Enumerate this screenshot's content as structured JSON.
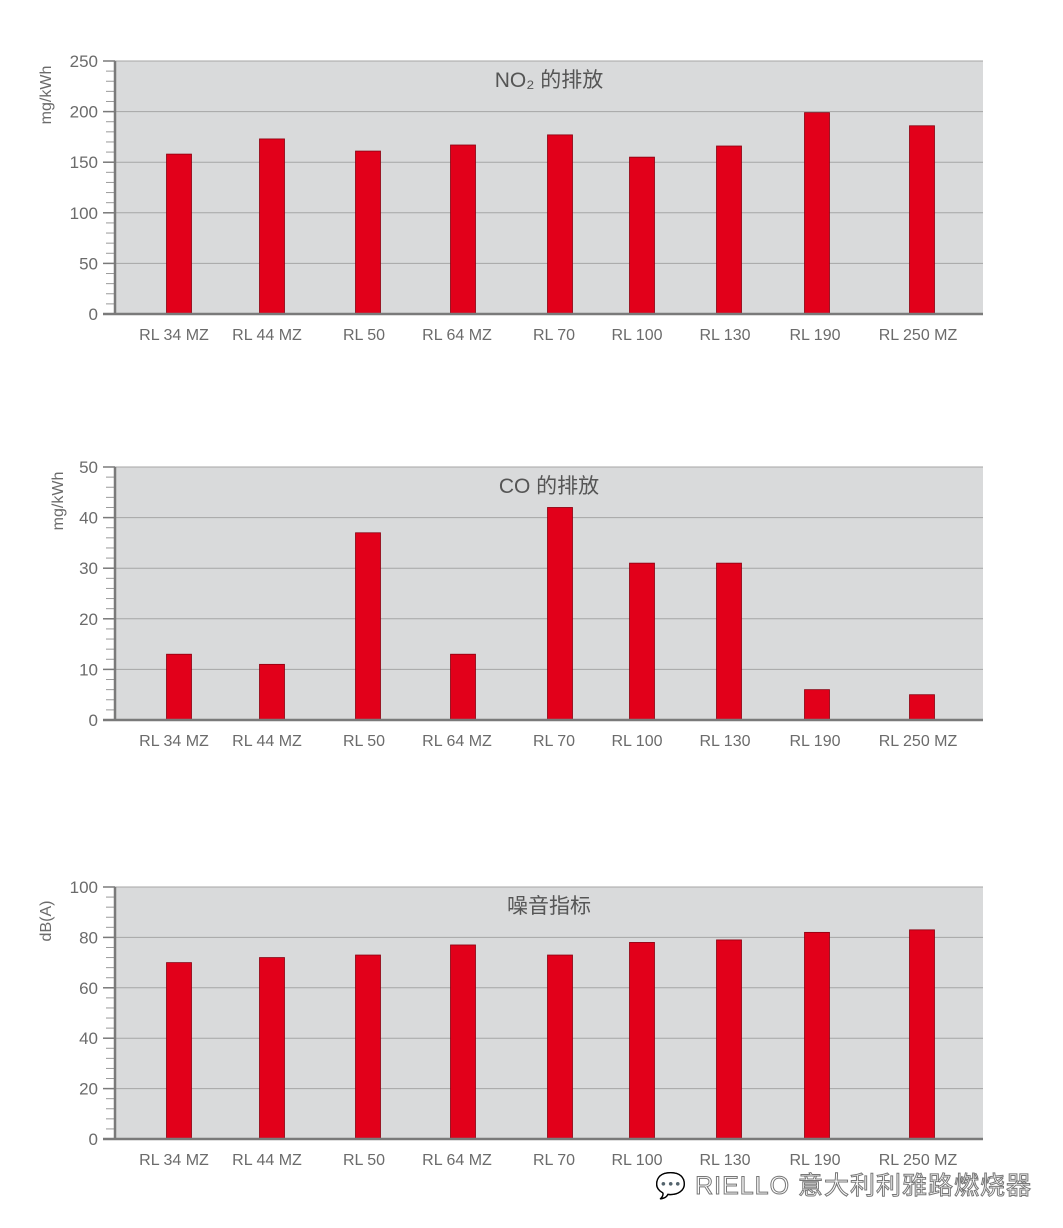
{
  "colors": {
    "bar": "#e2001a",
    "plot_bg": "#d9dadb",
    "grid": "#a6a6a6",
    "axis": "#7a7a7a"
  },
  "watermark": {
    "icon": "wechat-icon",
    "text": "RIELLO 意大利利雅路燃烧器"
  },
  "chart_data": [
    {
      "type": "bar",
      "title": "NO₂ 的排放",
      "ylabel": "mg/kWh",
      "ylim": [
        0,
        250
      ],
      "yticks": [
        0,
        50,
        100,
        150,
        200,
        250
      ],
      "grid": true,
      "categories": [
        "RL 34 MZ",
        "RL 44 MZ",
        "RL 50",
        "RL 64 MZ",
        "RL 70",
        "RL 100",
        "RL 130",
        "RL 190",
        "RL 250 MZ"
      ],
      "values": [
        158,
        173,
        161,
        167,
        177,
        155,
        166,
        199,
        186
      ]
    },
    {
      "type": "bar",
      "title": "CO 的排放",
      "ylabel": "mg/kWh",
      "ylim": [
        0,
        50
      ],
      "yticks": [
        0,
        10,
        20,
        30,
        40,
        50
      ],
      "grid": true,
      "categories": [
        "RL 34 MZ",
        "RL 44 MZ",
        "RL 50",
        "RL 64 MZ",
        "RL 70",
        "RL 100",
        "RL 130",
        "RL 190",
        "RL 250 MZ"
      ],
      "values": [
        13,
        11,
        37,
        13,
        42,
        31,
        31,
        6,
        5
      ]
    },
    {
      "type": "bar",
      "title": "噪音指标",
      "ylabel": "dB(A)",
      "ylim": [
        0,
        100
      ],
      "yticks": [
        0,
        20,
        40,
        60,
        80,
        100
      ],
      "grid": true,
      "categories": [
        "RL 34 MZ",
        "RL 44 MZ",
        "RL 50",
        "RL 64 MZ",
        "RL 70",
        "RL 100",
        "RL 130",
        "RL 190",
        "RL 250 MZ"
      ],
      "values": [
        70,
        72,
        73,
        77,
        73,
        78,
        79,
        82,
        83
      ]
    }
  ]
}
